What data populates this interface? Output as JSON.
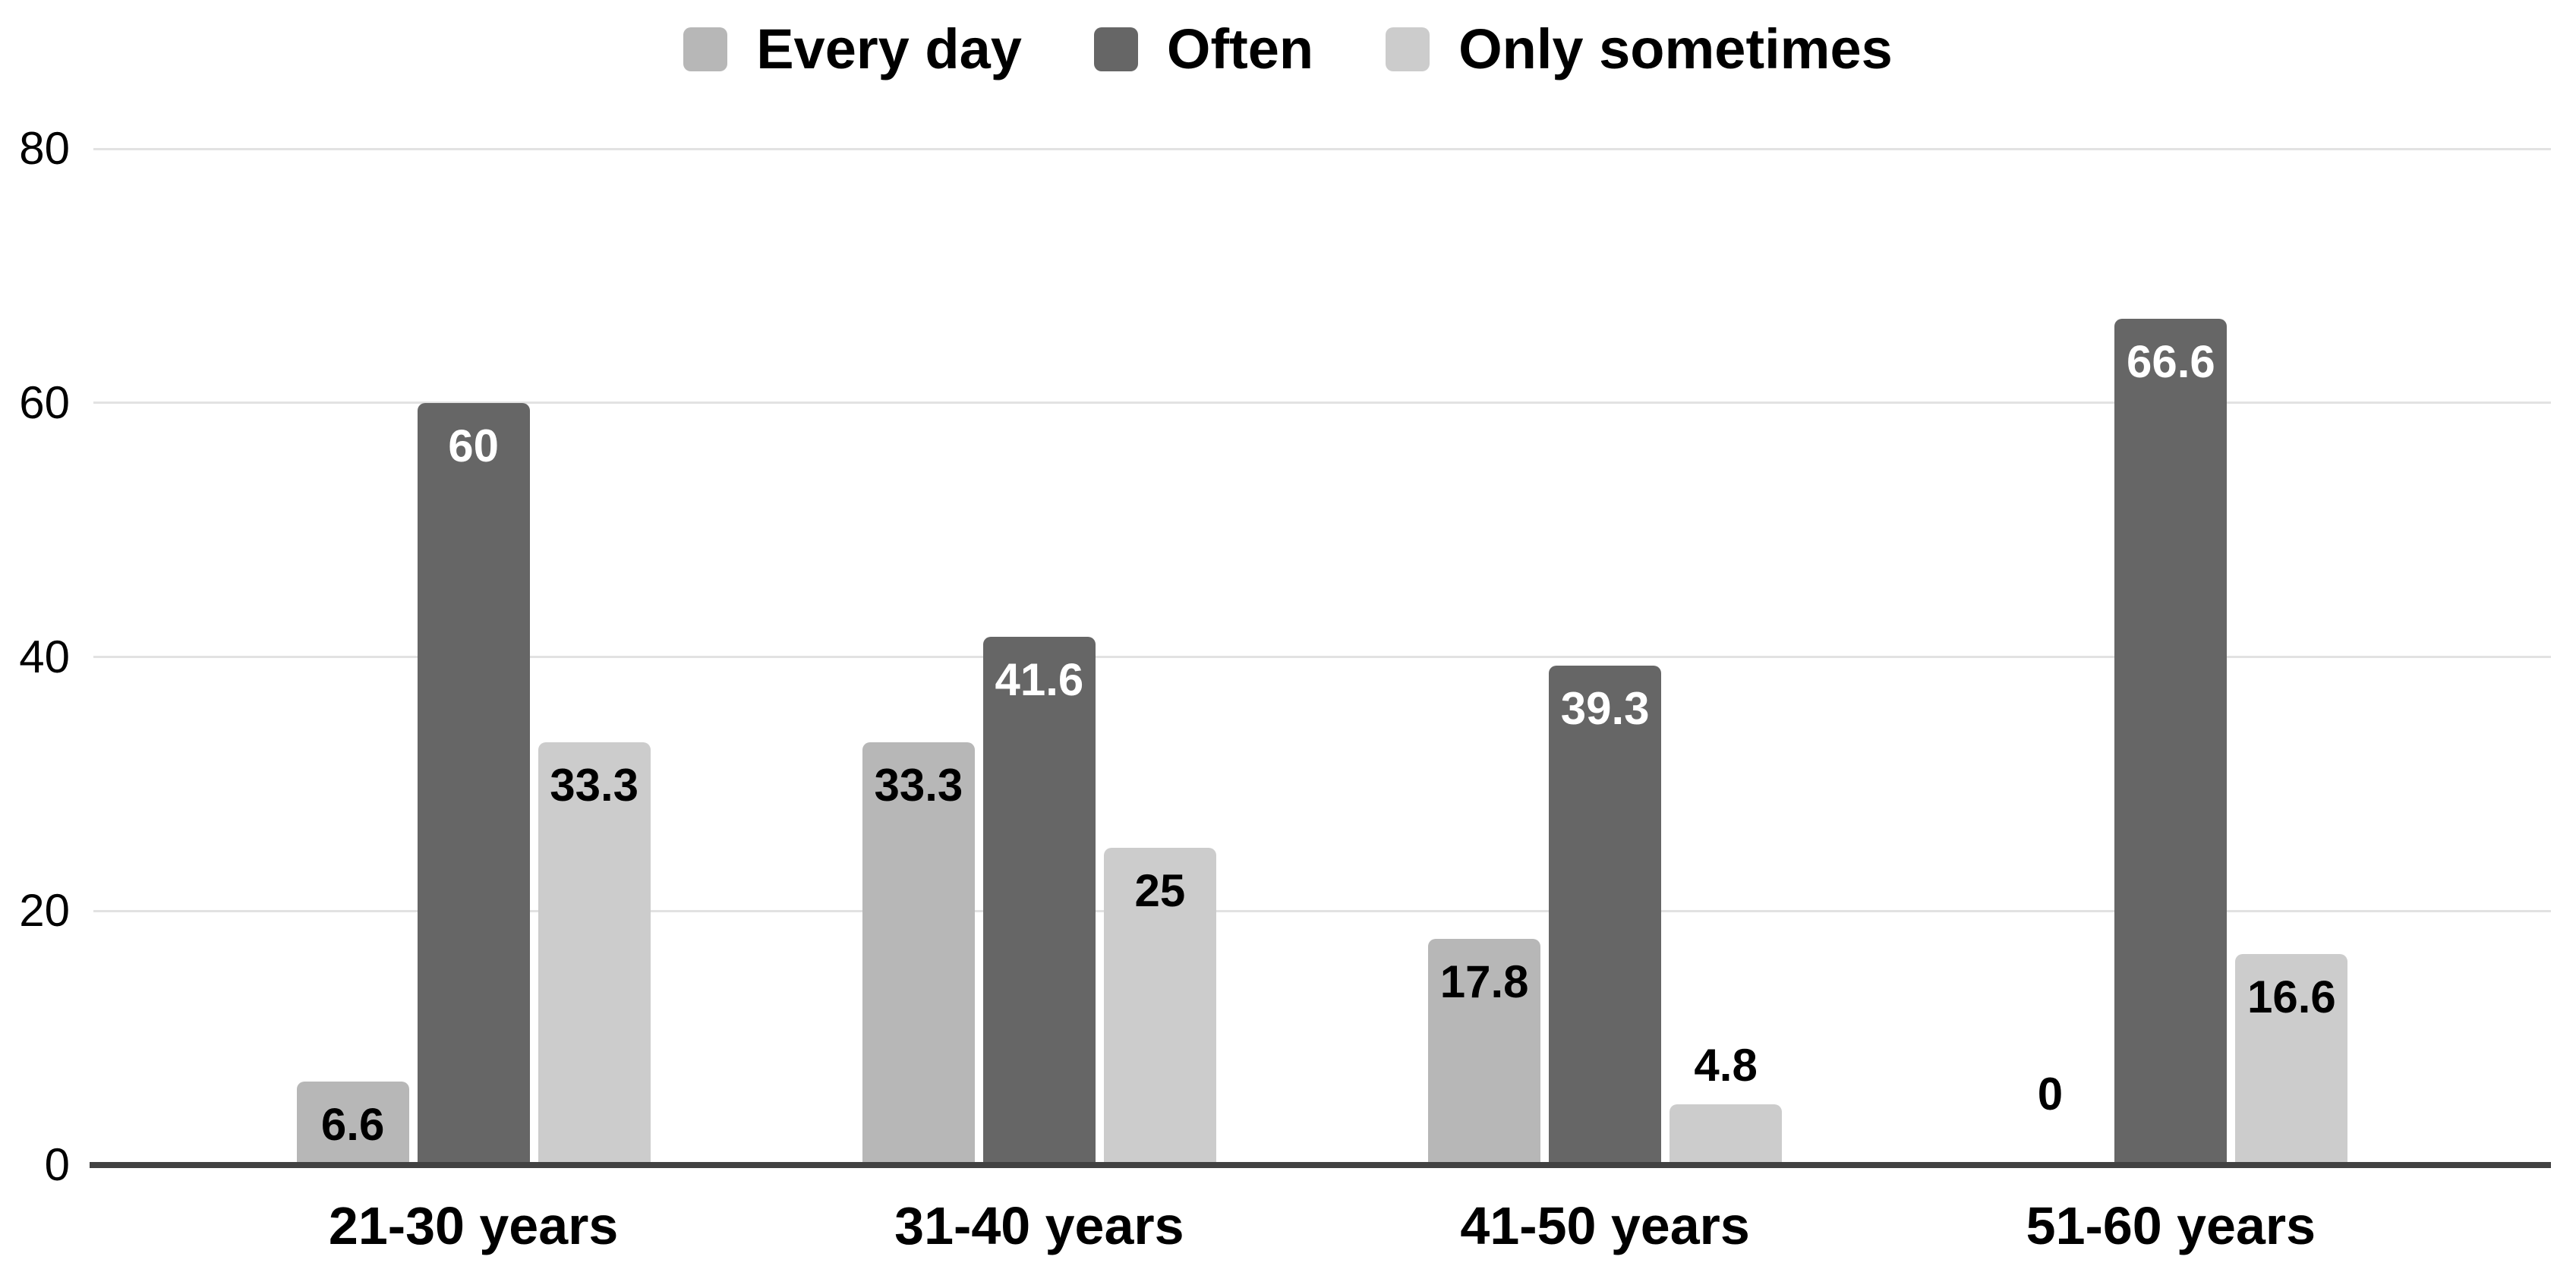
{
  "legend": {
    "items": [
      {
        "label": "Every day",
        "color": "#b7b7b7"
      },
      {
        "label": "Often",
        "color": "#666666"
      },
      {
        "label": "Only sometimes",
        "color": "#cccccc"
      }
    ]
  },
  "chart_data": {
    "type": "bar",
    "title": "",
    "categories": [
      "21-30 years",
      "31-40 years",
      "41-50 years",
      "51-60 years"
    ],
    "series": [
      {
        "name": "Every day",
        "color": "#b7b7b7",
        "label_color": "#000000",
        "values": [
          6.6,
          33.3,
          17.8,
          0
        ],
        "labels": [
          "6.6",
          "33.3",
          "17.8",
          "0"
        ]
      },
      {
        "name": "Often",
        "color": "#666666",
        "label_color": "#ffffff",
        "values": [
          60,
          41.6,
          39.3,
          66.6
        ],
        "labels": [
          "60",
          "41.6",
          "39.3",
          "66.6"
        ]
      },
      {
        "name": "Only sometimes",
        "color": "#cccccc",
        "label_color": "#000000",
        "values": [
          33.3,
          25,
          4.8,
          16.6
        ],
        "labels": [
          "33.3",
          "25",
          "4.8",
          "16.6"
        ]
      }
    ],
    "y_axis": {
      "min": 0,
      "max": 80,
      "ticks": [
        0,
        20,
        40,
        60,
        80
      ]
    },
    "xlabel": "",
    "ylabel": "",
    "grid": true,
    "legend_position": "top"
  },
  "style": {
    "gridline_color": "#e2e2e2",
    "axis_line_color": "#424242",
    "background": "#ffffff",
    "tick_label_color": "#000000"
  }
}
